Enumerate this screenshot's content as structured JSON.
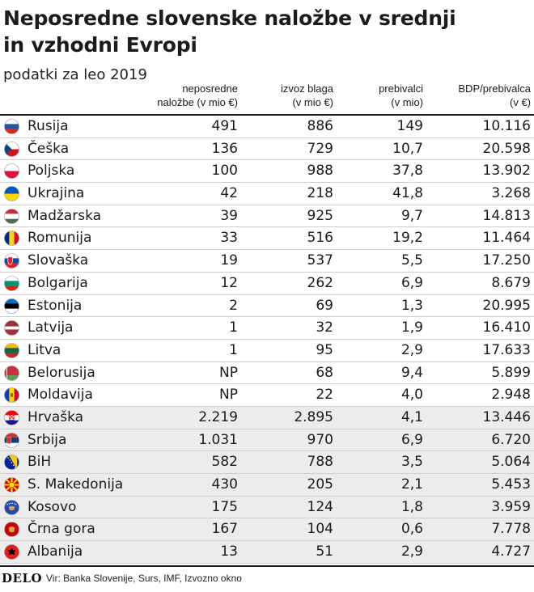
{
  "title_line1": "Neposredne slovenske naložbe v srednji",
  "title_line2": "in vzhodni Evropi",
  "subtitle": "podatki za leo 2019",
  "headers": [
    {
      "line1": "neposredne",
      "line2": "naložbe (v mio €)"
    },
    {
      "line1": "izvoz blaga",
      "line2": "(v mio €)"
    },
    {
      "line1": "prebivalci",
      "line2": "(v mio)"
    },
    {
      "line1": "BDP/prebivalca",
      "line2": "(v €)"
    }
  ],
  "chart_data": {
    "type": "table",
    "title": "Neposredne slovenske naložbe v srednji in vzhodni Evropi",
    "subtitle": "podatki za leo 2019",
    "columns": [
      "",
      "neposredne naložbe (v mio €)",
      "izvoz blaga (v mio €)",
      "prebivalci (v mio)",
      "BDP/prebivalca (v €)"
    ],
    "rows": [
      {
        "country": "Rusija",
        "flag": "russia-flag-icon",
        "investment": "491",
        "exports": "886",
        "population": "149",
        "gdp": "10.116",
        "shaded": false
      },
      {
        "country": "Češka",
        "flag": "czechia-flag-icon",
        "investment": "136",
        "exports": "729",
        "population": "10,7",
        "gdp": "20.598",
        "shaded": false
      },
      {
        "country": "Poljska",
        "flag": "poland-flag-icon",
        "investment": "100",
        "exports": "988",
        "population": "37,8",
        "gdp": "13.902",
        "shaded": false
      },
      {
        "country": "Ukrajina",
        "flag": "ukraine-flag-icon",
        "investment": "42",
        "exports": "218",
        "population": "41,8",
        "gdp": "3.268",
        "shaded": false
      },
      {
        "country": "Madžarska",
        "flag": "hungary-flag-icon",
        "investment": "39",
        "exports": "925",
        "population": "9,7",
        "gdp": "14.813",
        "shaded": false
      },
      {
        "country": "Romunija",
        "flag": "romania-flag-icon",
        "investment": "33",
        "exports": "516",
        "population": "19,2",
        "gdp": "11.464",
        "shaded": false
      },
      {
        "country": "Slovaška",
        "flag": "slovakia-flag-icon",
        "investment": "19",
        "exports": "537",
        "population": "5,5",
        "gdp": "17.250",
        "shaded": false
      },
      {
        "country": "Bolgarija",
        "flag": "bulgaria-flag-icon",
        "investment": "12",
        "exports": "262",
        "population": "6,9",
        "gdp": "8.679",
        "shaded": false
      },
      {
        "country": "Estonija",
        "flag": "estonia-flag-icon",
        "investment": "2",
        "exports": "69",
        "population": "1,3",
        "gdp": "20.995",
        "shaded": false
      },
      {
        "country": "Latvija",
        "flag": "latvia-flag-icon",
        "investment": "1",
        "exports": "32",
        "population": "1,9",
        "gdp": "16.410",
        "shaded": false
      },
      {
        "country": "Litva",
        "flag": "lithuania-flag-icon",
        "investment": "1",
        "exports": "95",
        "population": "2,9",
        "gdp": "17.633",
        "shaded": false
      },
      {
        "country": "Belorusija",
        "flag": "belarus-flag-icon",
        "investment": "NP",
        "exports": "68",
        "population": "9,4",
        "gdp": "5.899",
        "shaded": false
      },
      {
        "country": "Moldavija",
        "flag": "moldova-flag-icon",
        "investment": "NP",
        "exports": "22",
        "population": "4,0",
        "gdp": "2.948",
        "shaded": false
      },
      {
        "country": "Hrvaška",
        "flag": "croatia-flag-icon",
        "investment": "2.219",
        "exports": "2.895",
        "population": "4,1",
        "gdp": "13.446",
        "shaded": true
      },
      {
        "country": "Srbija",
        "flag": "serbia-flag-icon",
        "investment": "1.031",
        "exports": "970",
        "population": "6,9",
        "gdp": "6.720",
        "shaded": true
      },
      {
        "country": "BiH",
        "flag": "bih-flag-icon",
        "investment": "582",
        "exports": "788",
        "population": "3,5",
        "gdp": "5.064",
        "shaded": true
      },
      {
        "country": "S. Makedonija",
        "flag": "north-macedonia-flag-icon",
        "investment": "430",
        "exports": "205",
        "population": "2,1",
        "gdp": "5.453",
        "shaded": true
      },
      {
        "country": "Kosovo",
        "flag": "kosovo-flag-icon",
        "investment": "175",
        "exports": "124",
        "population": "1,8",
        "gdp": "3.959",
        "shaded": true
      },
      {
        "country": "Črna gora",
        "flag": "montenegro-flag-icon",
        "investment": "167",
        "exports": "104",
        "population": "0,6",
        "gdp": "7.778",
        "shaded": true
      },
      {
        "country": "Albanija",
        "flag": "albania-flag-icon",
        "investment": "13",
        "exports": "51",
        "population": "2,9",
        "gdp": "4.727",
        "shaded": true
      }
    ]
  },
  "colors": {
    "shade": "#ececec",
    "rule": "#1a1a1a",
    "row_divider": "#cfcfcf"
  },
  "footer": {
    "logo": "DELO",
    "source": "Vir: Banka Slovenije, Surs, IMF, Izvozno okno"
  }
}
